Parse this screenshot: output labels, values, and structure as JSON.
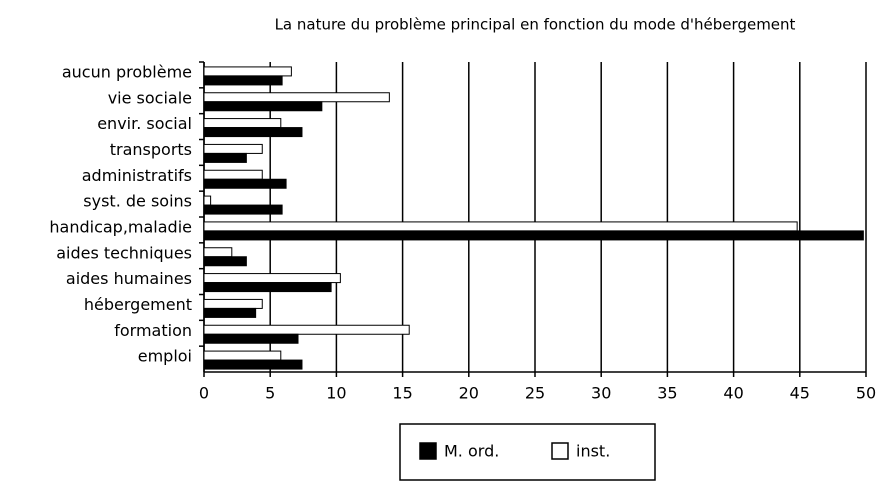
{
  "chart_data": {
    "type": "hbar",
    "title": "La nature du problème principal en fonction du mode d'hébergement",
    "categories": [
      "aucun problème",
      "vie sociale",
      "envir. social",
      "transports",
      "administratifs",
      "syst. de soins",
      "handicap,maladie",
      "aides techniques",
      "aides humaines",
      "hébergement",
      "formation",
      "emploi"
    ],
    "series": [
      {
        "name": "M. ord.",
        "color": "#000000",
        "values": [
          5.9,
          8.9,
          7.4,
          3.2,
          6.2,
          5.9,
          49.8,
          3.2,
          9.6,
          3.9,
          7.1,
          7.4
        ]
      },
      {
        "name": "inst.",
        "color": "#ffffff",
        "values": [
          6.6,
          14.0,
          5.8,
          4.4,
          4.4,
          0.5,
          44.8,
          2.1,
          10.3,
          4.4,
          15.5,
          5.8
        ]
      }
    ],
    "xlim": [
      0,
      50
    ],
    "xticks": [
      0,
      5,
      10,
      15,
      20,
      25,
      30,
      35,
      40,
      45,
      50
    ],
    "grid": true
  }
}
